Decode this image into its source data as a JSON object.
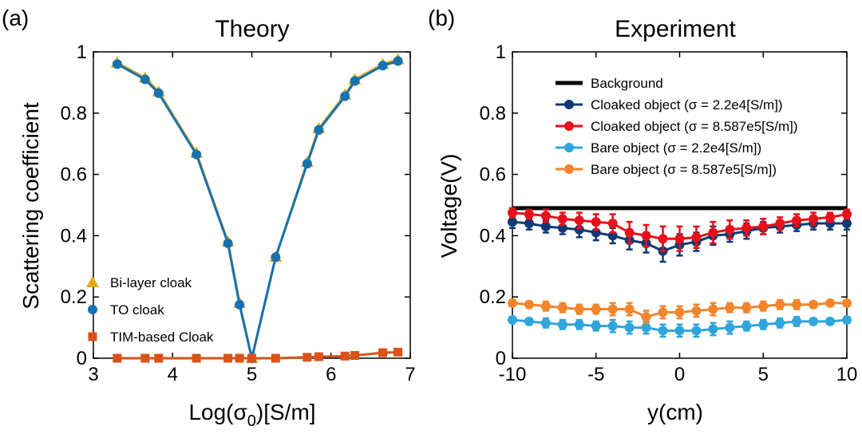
{
  "chart_data": [
    {
      "panel_label": "(a)",
      "type": "line",
      "title": "Theory",
      "xlabel_pre": "Log(σ",
      "xlabel_sub": "0",
      "xlabel_post": ")[S/m]",
      "ylabel": "Scattering coefficient",
      "xlim": [
        3,
        7
      ],
      "ylim": [
        0,
        1
      ],
      "xticks": [
        3,
        4,
        5,
        6,
        7
      ],
      "yticks": [
        0,
        0.2,
        0.4,
        0.6,
        0.8,
        1
      ],
      "ytick_labels": [
        "0",
        "0.2",
        "0.4",
        "0.6",
        "0.8",
        "1"
      ],
      "grid": false,
      "legend_position": "bottom-left",
      "x": [
        3.301,
        3.653,
        3.824,
        4.301,
        4.699,
        4.845,
        5.0,
        5.301,
        5.699,
        5.845,
        6.176,
        6.301,
        6.653,
        6.845
      ],
      "series": [
        {
          "name": "Bi-layer cloak",
          "marker": "triangle",
          "color": "#E1A91E",
          "values": [
            0.965,
            0.915,
            0.87,
            0.67,
            0.38,
            0.18,
            0.0,
            0.33,
            0.64,
            0.75,
            0.86,
            0.91,
            0.96,
            0.975
          ]
        },
        {
          "name": "TO cloak",
          "marker": "circle",
          "color": "#1772AE",
          "values": [
            0.96,
            0.91,
            0.865,
            0.665,
            0.375,
            0.175,
            0.0,
            0.33,
            0.635,
            0.745,
            0.855,
            0.905,
            0.955,
            0.97
          ]
        },
        {
          "name": "TIM-based Cloak",
          "marker": "square",
          "color": "#D95319",
          "values": [
            0.0,
            0.0,
            0.0,
            0.0,
            0.0,
            0.0,
            0.0,
            0.0,
            0.003,
            0.005,
            0.007,
            0.009,
            0.018,
            0.02
          ]
        }
      ]
    },
    {
      "panel_label": "(b)",
      "type": "line",
      "title": "Experiment",
      "xlabel": "y(cm)",
      "ylabel": "Voltage(V)",
      "xlim": [
        -10,
        10
      ],
      "ylim": [
        0,
        1
      ],
      "xticks": [
        -10,
        -5,
        0,
        5,
        10
      ],
      "yticks": [
        0,
        0.2,
        0.4,
        0.6,
        0.8,
        1
      ],
      "ytick_labels": [
        "0",
        "0.2",
        "0.4",
        "0.6",
        "0.8",
        "1"
      ],
      "grid": false,
      "legend_position": "top-right",
      "x": [
        -10,
        -9,
        -8,
        -7,
        -6,
        -5,
        -4,
        -3,
        -2,
        -1,
        0,
        1,
        2,
        3,
        4,
        5,
        6,
        7,
        8,
        9,
        10
      ],
      "series": [
        {
          "name": "Background",
          "marker": "none",
          "color": "#000000",
          "width": 5,
          "values": [
            0.49,
            0.49,
            0.49,
            0.49,
            0.49,
            0.49,
            0.49,
            0.49,
            0.49,
            0.49,
            0.49,
            0.49,
            0.49,
            0.49,
            0.49,
            0.49,
            0.49,
            0.49,
            0.49,
            0.49,
            0.49
          ]
        },
        {
          "name": "Cloaked object (σ = 2.2e4[S/m])",
          "marker": "circle",
          "color": "#0E3A73",
          "values": [
            0.445,
            0.44,
            0.43,
            0.425,
            0.42,
            0.41,
            0.4,
            0.385,
            0.375,
            0.35,
            0.37,
            0.38,
            0.4,
            0.405,
            0.415,
            0.425,
            0.43,
            0.435,
            0.44,
            0.44,
            0.44
          ],
          "errors": [
            0.02,
            0.02,
            0.02,
            0.02,
            0.025,
            0.025,
            0.025,
            0.03,
            0.03,
            0.035,
            0.035,
            0.03,
            0.03,
            0.025,
            0.025,
            0.02,
            0.02,
            0.02,
            0.02,
            0.02,
            0.02
          ]
        },
        {
          "name": "Cloaked object (σ = 8.587e5[S/m])",
          "marker": "circle",
          "color": "#E8101B",
          "values": [
            0.475,
            0.47,
            0.465,
            0.455,
            0.45,
            0.445,
            0.44,
            0.41,
            0.4,
            0.39,
            0.39,
            0.395,
            0.41,
            0.42,
            0.425,
            0.43,
            0.44,
            0.45,
            0.455,
            0.46,
            0.47
          ],
          "errors": [
            0.015,
            0.015,
            0.02,
            0.02,
            0.025,
            0.025,
            0.03,
            0.035,
            0.035,
            0.04,
            0.04,
            0.035,
            0.035,
            0.03,
            0.025,
            0.025,
            0.02,
            0.02,
            0.02,
            0.015,
            0.015
          ]
        },
        {
          "name": "Bare object (σ = 2.2e4[S/m])",
          "marker": "circle",
          "color": "#2FA5DC",
          "values": [
            0.125,
            0.12,
            0.115,
            0.11,
            0.11,
            0.105,
            0.105,
            0.1,
            0.1,
            0.09,
            0.09,
            0.09,
            0.095,
            0.1,
            0.105,
            0.11,
            0.115,
            0.12,
            0.12,
            0.12,
            0.125
          ],
          "errors": [
            0.01,
            0.01,
            0.015,
            0.015,
            0.015,
            0.015,
            0.02,
            0.02,
            0.02,
            0.02,
            0.02,
            0.02,
            0.02,
            0.02,
            0.015,
            0.015,
            0.015,
            0.015,
            0.01,
            0.01,
            0.01
          ]
        },
        {
          "name": "Bare object (σ = 8.587e5[S/m])",
          "marker": "circle",
          "color": "#F2852C",
          "values": [
            0.18,
            0.175,
            0.17,
            0.165,
            0.16,
            0.16,
            0.16,
            0.16,
            0.135,
            0.15,
            0.15,
            0.155,
            0.16,
            0.165,
            0.165,
            0.17,
            0.175,
            0.175,
            0.175,
            0.18,
            0.18
          ],
          "errors": [
            0.01,
            0.01,
            0.015,
            0.015,
            0.015,
            0.015,
            0.02,
            0.02,
            0.02,
            0.02,
            0.02,
            0.02,
            0.02,
            0.015,
            0.015,
            0.015,
            0.015,
            0.015,
            0.01,
            0.01,
            0.01
          ]
        }
      ]
    }
  ]
}
